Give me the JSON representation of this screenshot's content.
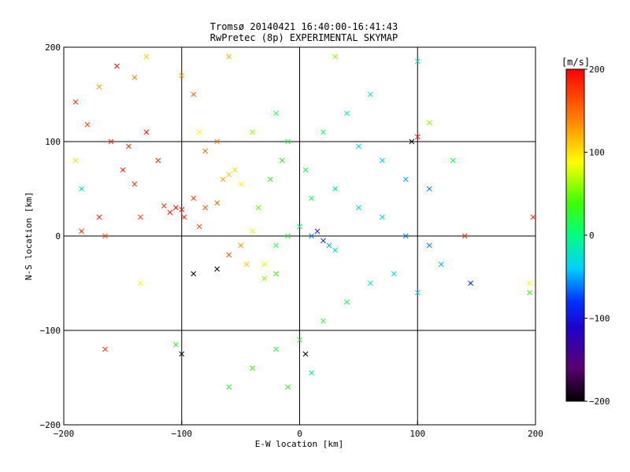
{
  "chart_data": {
    "type": "scatter",
    "title": "Tromsø 20140421 16:40:00-16:41:43",
    "subtitle": "RwPretec (8p) EXPERIMENTAL SKYMAP",
    "xlabel": "E-W location [km]",
    "ylabel": "N-S location [km]",
    "xlim": [
      -200,
      200
    ],
    "ylim": [
      -200,
      200
    ],
    "xticks": [
      -200,
      -100,
      0,
      100,
      200
    ],
    "yticks": [
      -200,
      -100,
      0,
      100,
      200
    ],
    "grid": true,
    "colorbar": {
      "label": "[m/s]",
      "range": [
        -200,
        200
      ],
      "ticks": [
        200,
        100,
        0,
        -100,
        -200
      ],
      "colormap": "rainbow (black-purple-blue-cyan-green-yellow-orange-red)"
    },
    "marker_types": [
      "dot",
      "cross"
    ],
    "points": [
      {
        "x": -190,
        "y": 142,
        "v": 180,
        "m": "x"
      },
      {
        "x": -180,
        "y": 118,
        "v": 170,
        "m": "x"
      },
      {
        "x": -170,
        "y": 158,
        "v": 130,
        "m": "x"
      },
      {
        "x": -155,
        "y": 180,
        "v": 190,
        "m": "x"
      },
      {
        "x": -140,
        "y": 168,
        "v": 140,
        "m": "x"
      },
      {
        "x": -130,
        "y": 190,
        "v": 110,
        "m": "x"
      },
      {
        "x": -160,
        "y": 100,
        "v": 180,
        "m": "x"
      },
      {
        "x": -145,
        "y": 95,
        "v": 175,
        "m": "x"
      },
      {
        "x": -130,
        "y": 110,
        "v": 190,
        "m": "x"
      },
      {
        "x": -120,
        "y": 80,
        "v": 180,
        "m": "x"
      },
      {
        "x": -150,
        "y": 70,
        "v": 185,
        "m": "x"
      },
      {
        "x": -185,
        "y": 50,
        "v": -20,
        "m": "x"
      },
      {
        "x": -190,
        "y": 80,
        "v": 100,
        "m": "x"
      },
      {
        "x": -170,
        "y": 20,
        "v": 180,
        "m": "x"
      },
      {
        "x": -185,
        "y": 5,
        "v": 175,
        "m": "x"
      },
      {
        "x": -165,
        "y": 0,
        "v": 160,
        "m": "x"
      },
      {
        "x": -140,
        "y": 55,
        "v": 180,
        "m": "x"
      },
      {
        "x": -135,
        "y": 20,
        "v": 170,
        "m": "x"
      },
      {
        "x": -105,
        "y": 30,
        "v": 195,
        "m": "x"
      },
      {
        "x": -110,
        "y": 25,
        "v": 185,
        "m": "x"
      },
      {
        "x": -100,
        "y": 28,
        "v": 190,
        "m": "x"
      },
      {
        "x": -98,
        "y": 20,
        "v": 180,
        "m": "x"
      },
      {
        "x": -115,
        "y": 32,
        "v": 175,
        "m": "x"
      },
      {
        "x": -90,
        "y": 40,
        "v": 170,
        "m": "x"
      },
      {
        "x": -80,
        "y": 30,
        "v": 160,
        "m": "x"
      },
      {
        "x": -70,
        "y": 35,
        "v": 150,
        "m": "x"
      },
      {
        "x": -85,
        "y": 10,
        "v": 165,
        "m": "x"
      },
      {
        "x": -60,
        "y": 65,
        "v": 110,
        "m": "x"
      },
      {
        "x": -55,
        "y": 70,
        "v": 100,
        "m": "x"
      },
      {
        "x": -65,
        "y": 60,
        "v": 120,
        "m": "x"
      },
      {
        "x": -50,
        "y": 55,
        "v": 90,
        "m": "x"
      },
      {
        "x": -80,
        "y": 90,
        "v": 150,
        "m": "x"
      },
      {
        "x": -70,
        "y": 100,
        "v": 140,
        "m": "x"
      },
      {
        "x": -40,
        "y": 110,
        "v": 60,
        "m": "x"
      },
      {
        "x": -20,
        "y": 130,
        "v": 20,
        "m": "x"
      },
      {
        "x": -10,
        "y": 100,
        "v": 20,
        "m": "x"
      },
      {
        "x": 20,
        "y": 110,
        "v": 10,
        "m": "x"
      },
      {
        "x": 40,
        "y": 130,
        "v": -10,
        "m": "x"
      },
      {
        "x": 60,
        "y": 150,
        "v": -20,
        "m": "x"
      },
      {
        "x": 50,
        "y": 95,
        "v": -30,
        "m": "x"
      },
      {
        "x": 70,
        "y": 80,
        "v": -40,
        "m": "x"
      },
      {
        "x": 90,
        "y": 60,
        "v": -50,
        "m": "x"
      },
      {
        "x": 110,
        "y": 50,
        "v": -60,
        "m": "x"
      },
      {
        "x": 130,
        "y": 80,
        "v": 20,
        "m": "x"
      },
      {
        "x": 100,
        "y": 105,
        "v": 190,
        "m": "x"
      },
      {
        "x": 95,
        "y": 100,
        "v": -200,
        "m": "x"
      },
      {
        "x": 110,
        "y": 120,
        "v": 60,
        "m": "x"
      },
      {
        "x": 100,
        "y": 185,
        "v": -30,
        "m": "x"
      },
      {
        "x": 30,
        "y": 190,
        "v": 60,
        "m": "x"
      },
      {
        "x": -60,
        "y": 190,
        "v": 120,
        "m": "x"
      },
      {
        "x": 10,
        "y": 40,
        "v": 10,
        "m": "x"
      },
      {
        "x": 30,
        "y": 50,
        "v": -10,
        "m": "x"
      },
      {
        "x": 50,
        "y": 30,
        "v": -30,
        "m": "x"
      },
      {
        "x": 70,
        "y": 20,
        "v": -40,
        "m": "x"
      },
      {
        "x": 90,
        "y": 0,
        "v": -60,
        "m": "x"
      },
      {
        "x": 110,
        "y": -10,
        "v": -60,
        "m": "x"
      },
      {
        "x": 120,
        "y": -30,
        "v": -50,
        "m": "x"
      },
      {
        "x": 140,
        "y": 0,
        "v": 180,
        "m": "x"
      },
      {
        "x": 145,
        "y": -50,
        "v": -80,
        "m": "x"
      },
      {
        "x": 195,
        "y": -50,
        "v": 90,
        "m": "x"
      },
      {
        "x": 195,
        "y": -60,
        "v": 40,
        "m": "x"
      },
      {
        "x": 198,
        "y": 20,
        "v": 180,
        "m": "x"
      },
      {
        "x": 100,
        "y": -60,
        "v": -40,
        "m": "x"
      },
      {
        "x": 80,
        "y": -40,
        "v": -40,
        "m": "x"
      },
      {
        "x": 60,
        "y": -50,
        "v": -20,
        "m": "x"
      },
      {
        "x": 40,
        "y": -70,
        "v": 10,
        "m": "x"
      },
      {
        "x": 20,
        "y": -90,
        "v": 20,
        "m": "x"
      },
      {
        "x": 0,
        "y": -110,
        "v": 30,
        "m": "x"
      },
      {
        "x": -20,
        "y": -120,
        "v": 20,
        "m": "x"
      },
      {
        "x": -40,
        "y": -140,
        "v": 40,
        "m": "x"
      },
      {
        "x": -60,
        "y": -160,
        "v": 20,
        "m": "x"
      },
      {
        "x": -10,
        "y": -160,
        "v": 30,
        "m": "x"
      },
      {
        "x": 10,
        "y": -145,
        "v": 0,
        "m": "x"
      },
      {
        "x": 5,
        "y": -125,
        "v": -200,
        "m": "x"
      },
      {
        "x": -100,
        "y": -125,
        "v": -200,
        "m": "x"
      },
      {
        "x": -105,
        "y": -115,
        "v": 30,
        "m": "x"
      },
      {
        "x": -165,
        "y": -120,
        "v": 170,
        "m": "x"
      },
      {
        "x": -90,
        "y": -40,
        "v": -200,
        "m": "x"
      },
      {
        "x": -70,
        "y": -35,
        "v": -200,
        "m": "x"
      },
      {
        "x": -60,
        "y": -20,
        "v": 160,
        "m": "x"
      },
      {
        "x": -50,
        "y": -10,
        "v": 130,
        "m": "x"
      },
      {
        "x": -45,
        "y": -30,
        "v": 110,
        "m": "x"
      },
      {
        "x": -30,
        "y": -30,
        "v": 80,
        "m": "x"
      },
      {
        "x": -30,
        "y": -45,
        "v": 60,
        "m": "x"
      },
      {
        "x": -20,
        "y": -40,
        "v": 40,
        "m": "x"
      },
      {
        "x": -20,
        "y": -10,
        "v": 20,
        "m": "x"
      },
      {
        "x": -10,
        "y": 0,
        "v": 20,
        "m": "x"
      },
      {
        "x": 0,
        "y": 10,
        "v": 0,
        "m": "x"
      },
      {
        "x": 10,
        "y": 0,
        "v": -60,
        "m": "x"
      },
      {
        "x": 15,
        "y": 5,
        "v": -90,
        "m": "x"
      },
      {
        "x": 20,
        "y": -5,
        "v": -80,
        "m": "x"
      },
      {
        "x": 25,
        "y": -10,
        "v": -50,
        "m": "x"
      },
      {
        "x": 30,
        "y": -15,
        "v": -30,
        "m": "x"
      },
      {
        "x": -35,
        "y": 30,
        "v": 50,
        "m": "x"
      },
      {
        "x": -40,
        "y": 5,
        "v": 80,
        "m": "x"
      },
      {
        "x": -25,
        "y": 60,
        "v": 30,
        "m": "x"
      },
      {
        "x": -15,
        "y": 80,
        "v": 30,
        "m": "x"
      },
      {
        "x": 5,
        "y": 70,
        "v": 20,
        "m": "x"
      },
      {
        "x": -135,
        "y": -50,
        "v": 90,
        "m": "x"
      },
      {
        "x": -90,
        "y": 150,
        "v": 150,
        "m": "x"
      },
      {
        "x": -100,
        "y": 170,
        "v": 130,
        "m": "x"
      },
      {
        "x": -85,
        "y": 110,
        "v": 90,
        "m": "x"
      }
    ]
  }
}
